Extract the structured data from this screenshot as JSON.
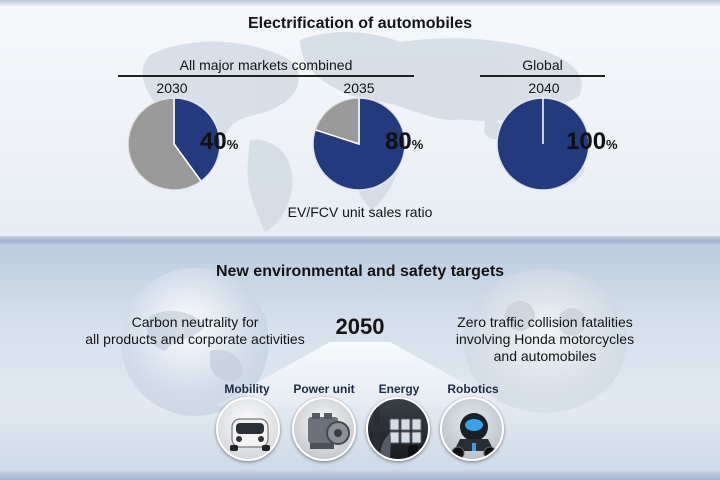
{
  "chart_data": [
    {
      "type": "pie",
      "tick_label": "2030",
      "slices": [
        {
          "value": 40,
          "color": "#233a7c"
        },
        {
          "value": 60,
          "color": "#9a9a9a"
        }
      ],
      "data_label": "40",
      "unit": "%"
    },
    {
      "type": "pie",
      "tick_label": "2035",
      "slices": [
        {
          "value": 80,
          "color": "#233a7c"
        },
        {
          "value": 20,
          "color": "#9a9a9a"
        }
      ],
      "data_label": "80",
      "unit": "%"
    },
    {
      "type": "pie",
      "tick_label": "2040",
      "slices": [
        {
          "value": 100,
          "color": "#233a7c"
        }
      ],
      "data_label": "100",
      "unit": "%"
    }
  ],
  "header": {
    "title": "Electrification of automobiles",
    "group_left": "All major markets combined",
    "group_right": "Global",
    "caption": "EV/FCV unit sales ratio"
  },
  "targets": {
    "title": "New environmental and safety targets",
    "year": "2050",
    "left_line1": "Carbon neutrality for",
    "left_line2": "all products and corporate activities",
    "right_line1": "Zero traffic collision fatalities",
    "right_line2": "involving Honda motorcycles",
    "right_line3": "and automobiles"
  },
  "categories": [
    {
      "label": "Mobility",
      "icon": "car-icon"
    },
    {
      "label": "Power unit",
      "icon": "engine-icon"
    },
    {
      "label": "Energy",
      "icon": "battery-icon"
    },
    {
      "label": "Robotics",
      "icon": "robot-icon"
    }
  ],
  "colors": {
    "ev_share": "#233a7c",
    "other_share": "#9a9a9a"
  }
}
